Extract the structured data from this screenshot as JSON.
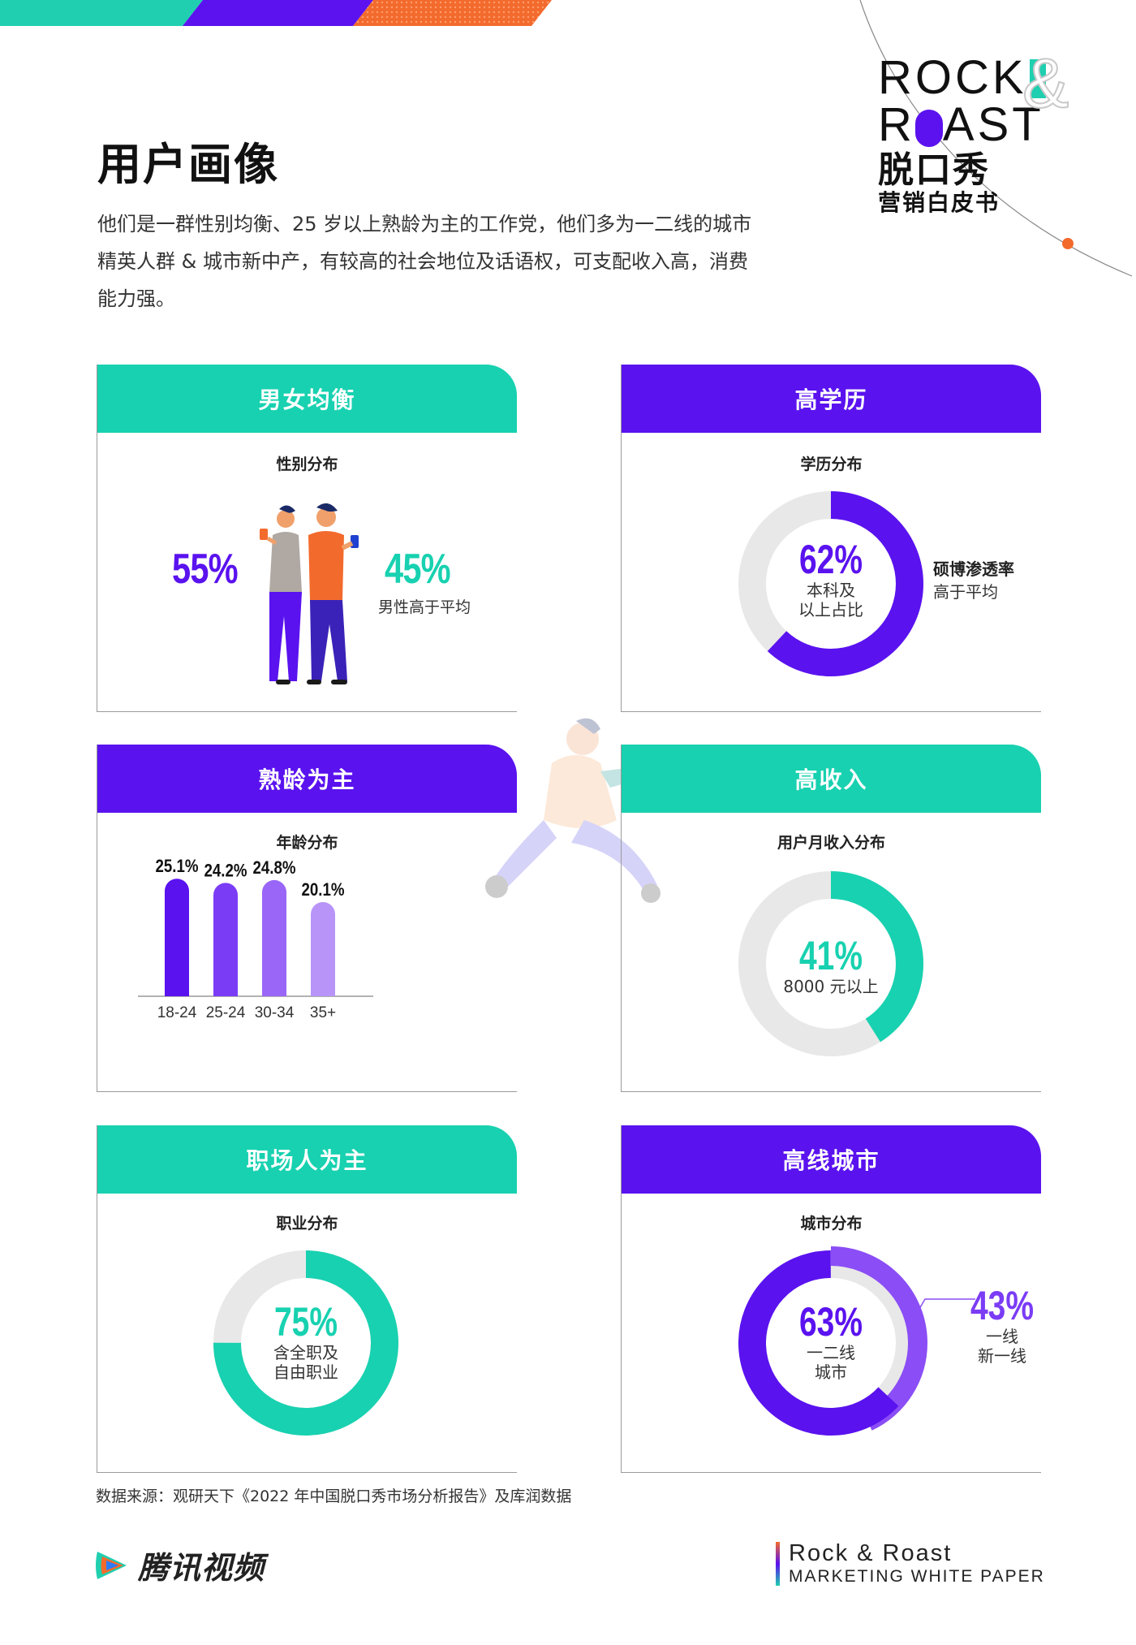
{
  "header": {
    "title": "用户画像",
    "intro": "他们是一群性别均衡、25 岁以上熟龄为主的工作党，他们多为一二线的城市精英人群 & 城市新中产，有较高的社会地位及话语权，可支配收入高，消费能力强。"
  },
  "logo": {
    "line1": "ROCK",
    "line2a": "R",
    "line2b": "AST",
    "amp": "&",
    "cn1": "脱口秀",
    "cn2": "营销白皮书"
  },
  "colors": {
    "teal": "#18d1b0",
    "purple": "#5a12ef",
    "orange": "#f36a2d",
    "grey_ring": "#e8e8e8"
  },
  "cards": {
    "gender": {
      "heading": "男女均衡",
      "subtitle": "性别分布",
      "female_pct": "55%",
      "male_pct": "45%",
      "male_note": "男性高于平均",
      "illustration": "couple-with-phones-illustration"
    },
    "education": {
      "heading": "高学历",
      "subtitle": "学历分布",
      "value": "62%",
      "caption1": "本科及",
      "caption2": "以上占比",
      "side1": "硕博渗透率",
      "side2": "高于平均",
      "fraction": 0.62
    },
    "age": {
      "heading": "熟龄为主",
      "subtitle": "年龄分布"
    },
    "income": {
      "heading": "高收入",
      "subtitle": "用户月收入分布",
      "value": "41%",
      "caption": "8000 元以上",
      "fraction": 0.41
    },
    "occupation": {
      "heading": "职场人为主",
      "subtitle": "职业分布",
      "value": "75%",
      "caption1": "含全职及",
      "caption2": "自由职业",
      "fraction": 0.75
    },
    "city": {
      "heading": "高线城市",
      "subtitle": "城市分布",
      "value": "63%",
      "caption1": "一二线",
      "caption2": "城市",
      "fraction": 0.63,
      "side_value": "43%",
      "side1": "一线",
      "side2": "新一线",
      "side_fraction": 0.43
    }
  },
  "chart_data": {
    "type": "bar",
    "title": "年龄分布",
    "categories": [
      "18-24",
      "25-24",
      "30-34",
      "35+"
    ],
    "values": [
      25.1,
      24.2,
      24.8,
      20.1
    ],
    "labels": [
      "25.1%",
      "24.2%",
      "24.8%",
      "20.1%"
    ],
    "colors": [
      "#5a12ef",
      "#7b3cf5",
      "#9a66f7",
      "#b894f9"
    ],
    "ylim": [
      0,
      26
    ]
  },
  "footer": {
    "source": "数据来源：观研天下《2022 年中国脱口秀市场分析报告》及库润数据",
    "brand": "腾讯视频",
    "right1": "Rock & Roast",
    "right2": "MARKETING WHITE PAPER"
  }
}
